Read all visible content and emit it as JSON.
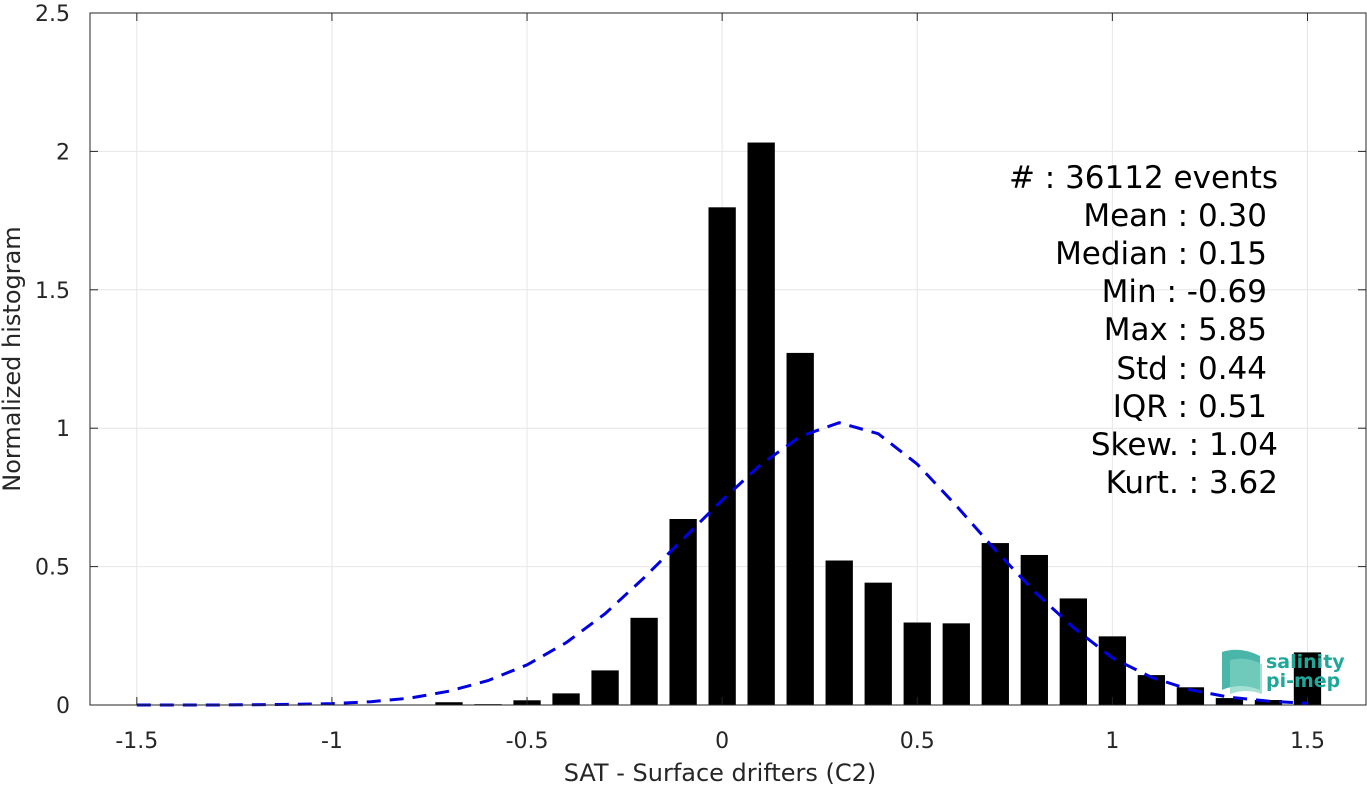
{
  "chart_data": {
    "type": "bar",
    "xlabel": "SAT - Surface drifters (C2)",
    "ylabel": "Normalized histogram",
    "xlim": [
      -1.62,
      1.65
    ],
    "ylim": [
      0,
      2.5
    ],
    "xticks": [
      -1.5,
      -1,
      -0.5,
      0,
      0.5,
      1,
      1.5
    ],
    "xtick_labels": [
      "-1.5",
      "-1",
      "-0.5",
      "0",
      "0.5",
      "1",
      "1.5"
    ],
    "yticks": [
      0,
      0.5,
      1,
      1.5,
      2,
      2.5
    ],
    "ytick_labels": [
      "0",
      "0.5",
      "1",
      "1.5",
      "2",
      "2.5"
    ],
    "grid": true,
    "bar_width": 0.07,
    "bars": {
      "x": [
        -0.7,
        -0.6,
        -0.5,
        -0.4,
        -0.3,
        -0.2,
        -0.1,
        0.0,
        0.1,
        0.2,
        0.3,
        0.4,
        0.5,
        0.6,
        0.7,
        0.8,
        0.9,
        1.0,
        1.1,
        1.2,
        1.3,
        1.4,
        1.5
      ],
      "values": [
        0.01,
        0.003,
        0.017,
        0.042,
        0.125,
        0.315,
        0.672,
        1.798,
        2.032,
        1.272,
        0.522,
        0.442,
        0.298,
        0.295,
        0.585,
        0.542,
        0.385,
        0.248,
        0.108,
        0.064,
        0.025,
        0.018,
        0.19
      ]
    },
    "series": [
      {
        "name": "",
        "type": "line",
        "style": "dashed",
        "color": "#0000e0",
        "x": [
          -1.5,
          -1.4,
          -1.3,
          -1.2,
          -1.1,
          -1.0,
          -0.9,
          -0.8,
          -0.7,
          -0.6,
          -0.5,
          -0.4,
          -0.3,
          -0.2,
          -0.1,
          0.0,
          0.1,
          0.2,
          0.3,
          0.4,
          0.5,
          0.6,
          0.7,
          0.8,
          0.9,
          1.0,
          1.1,
          1.2,
          1.3,
          1.4,
          1.5
        ],
        "values": [
          0.0,
          0.0,
          0.0,
          0.001,
          0.002,
          0.005,
          0.012,
          0.025,
          0.05,
          0.088,
          0.145,
          0.225,
          0.33,
          0.46,
          0.6,
          0.74,
          0.87,
          0.97,
          1.02,
          0.98,
          0.87,
          0.72,
          0.56,
          0.41,
          0.28,
          0.17,
          0.1,
          0.055,
          0.028,
          0.014,
          0.006
        ]
      }
    ],
    "bar_color": "#000000",
    "stats": [
      "#  : 36112 events",
      "Mean : 0.30",
      "Median : 0.15",
      "Min : -0.69",
      "Max : 5.85",
      "Std : 0.44",
      "IQR : 0.51",
      "Skew. : 1.04",
      "Kurt. : 3.62"
    ]
  },
  "logo": {
    "line1": "salinity",
    "line2": "pi-mep",
    "color": "#1fa89a"
  }
}
